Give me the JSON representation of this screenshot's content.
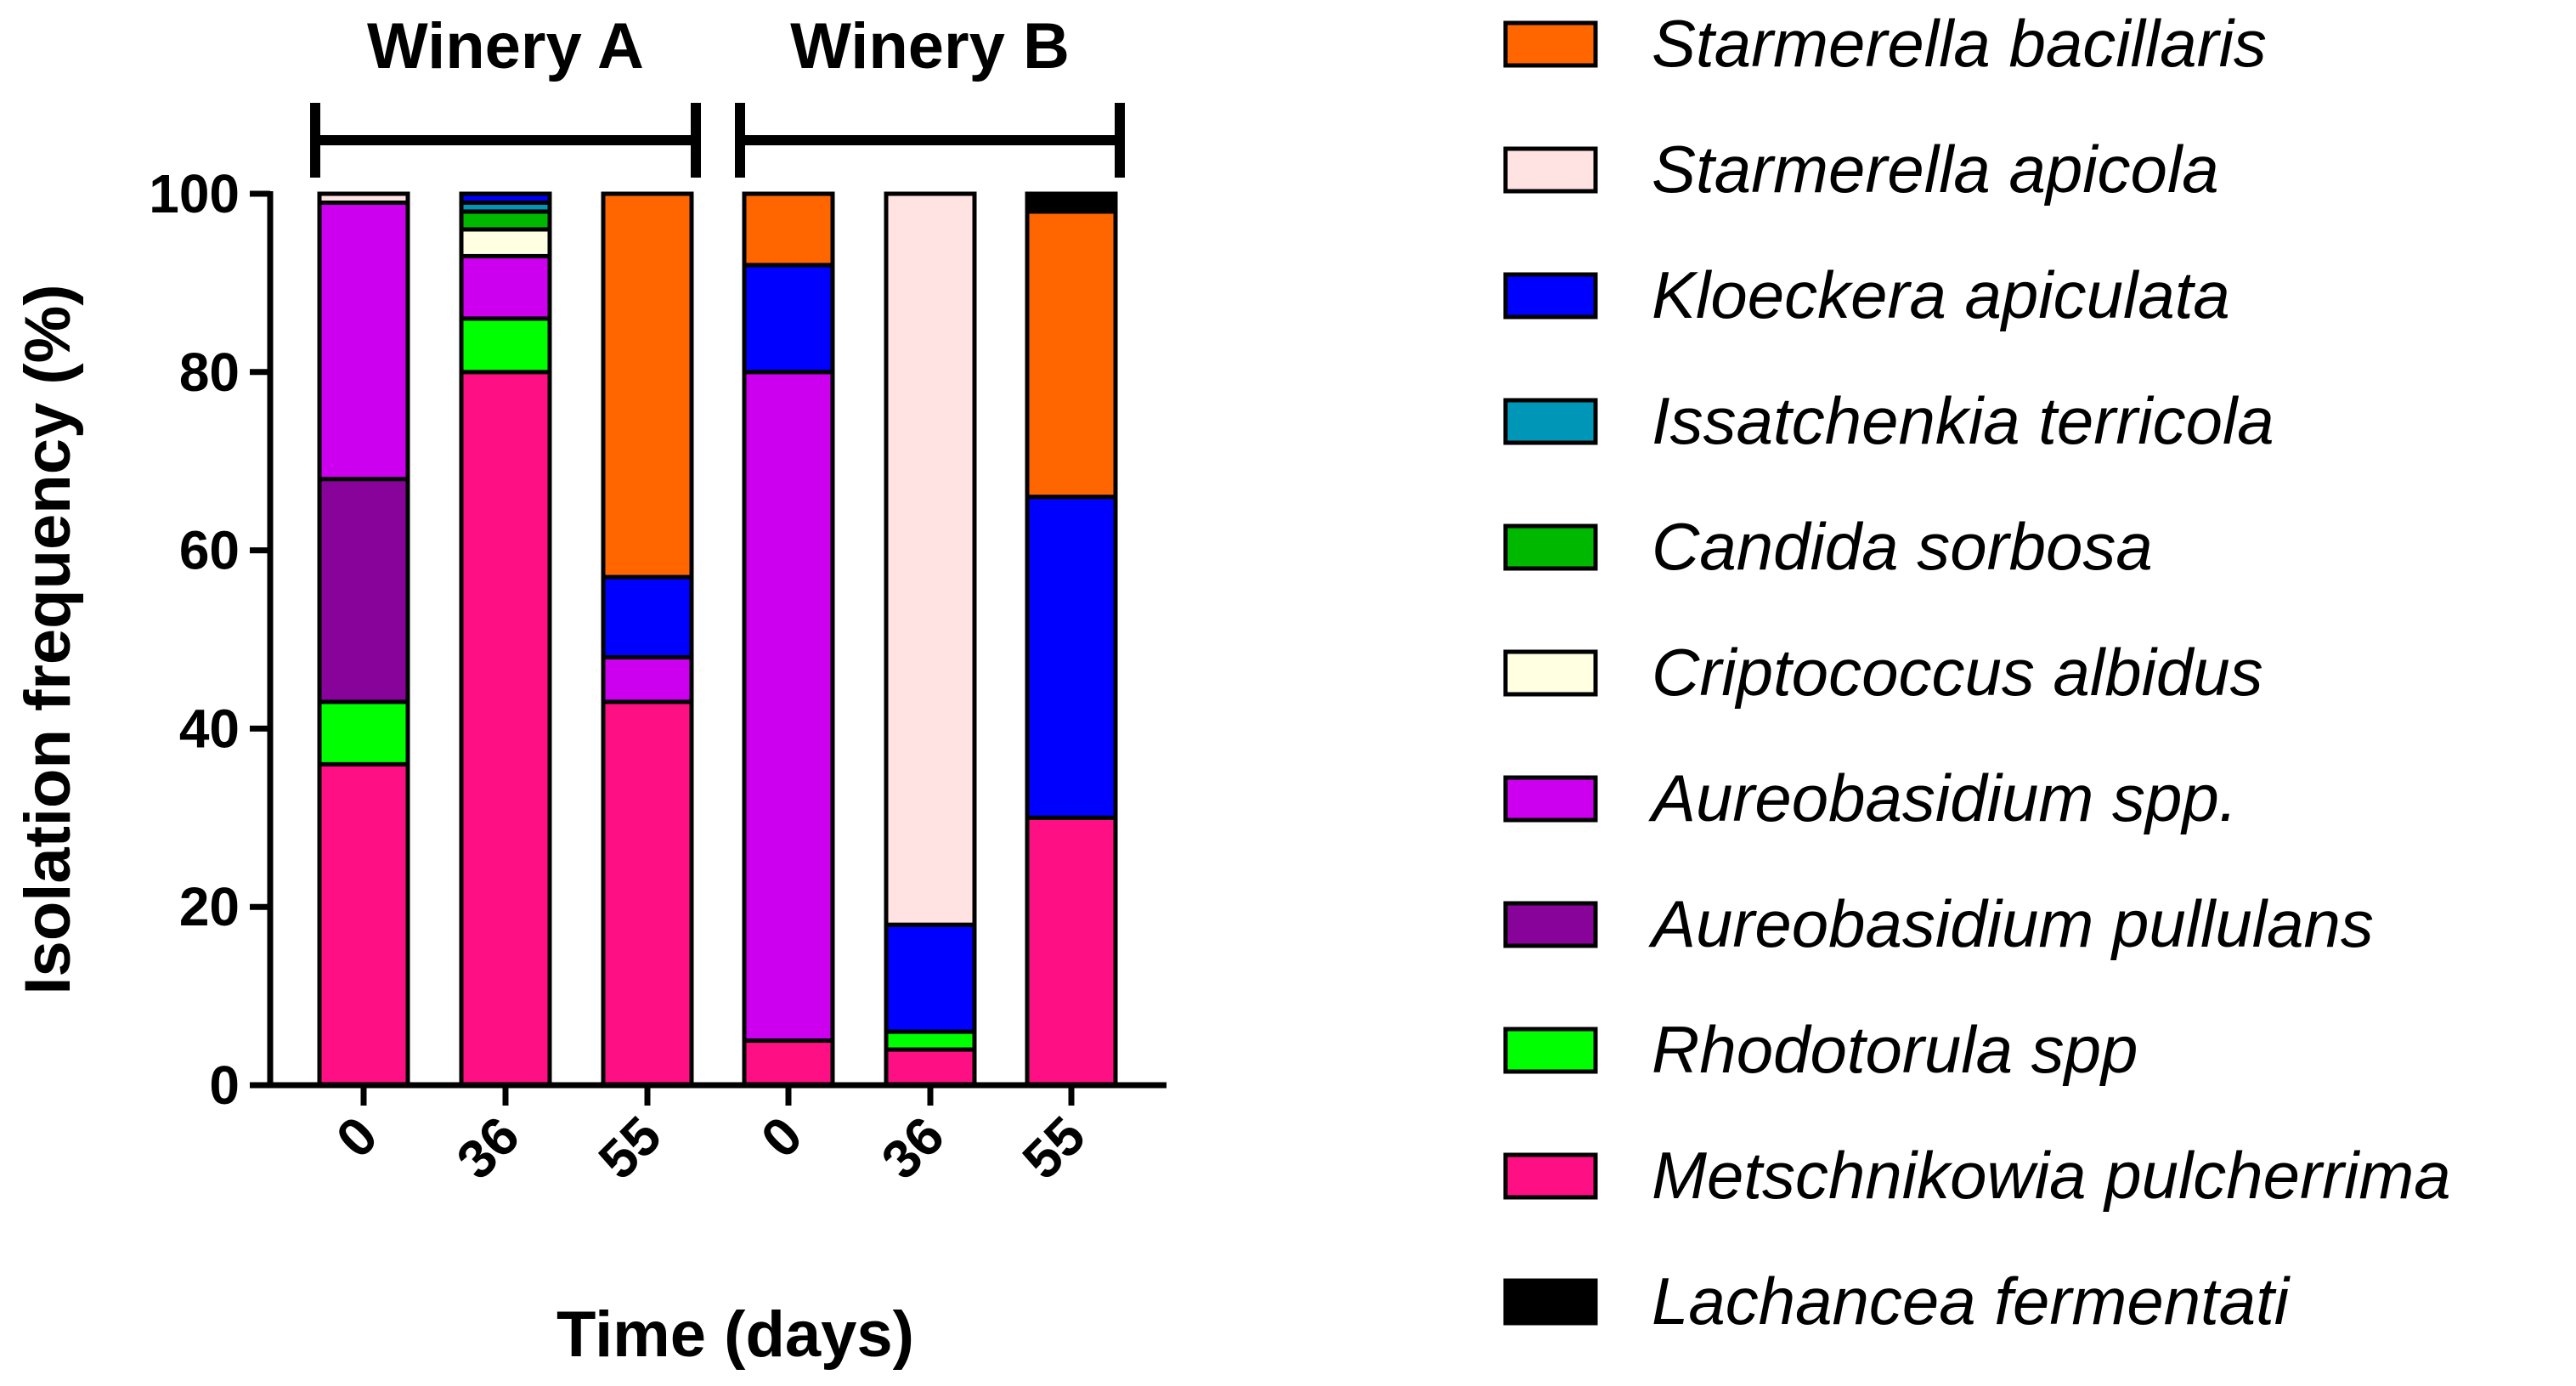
{
  "chart_data": {
    "type": "bar",
    "stacked": true,
    "ylabel": "Isolation frequency (%)",
    "xlabel": "Time (days)",
    "ylim": [
      0,
      100
    ],
    "yticks": [
      0,
      20,
      40,
      60,
      80,
      100
    ],
    "groups": [
      {
        "name": "Winery A",
        "bars": [
          0,
          1,
          2
        ]
      },
      {
        "name": "Winery B",
        "bars": [
          3,
          4,
          5
        ]
      }
    ],
    "categories": [
      "0",
      "36",
      "55",
      "0",
      "36",
      "55"
    ],
    "series": [
      {
        "name": "Metschnikowia pulcherrima",
        "color": "#FF0F84",
        "values": [
          36,
          80,
          43,
          5,
          4,
          30
        ]
      },
      {
        "name": "Rhodotorula spp",
        "color": "#00FF00",
        "values": [
          7,
          6,
          0,
          0,
          2,
          0
        ]
      },
      {
        "name": "Aureobasidium pullulans",
        "color": "#880399",
        "values": [
          25,
          0,
          0,
          0,
          0,
          0
        ]
      },
      {
        "name": "Aureobasidium spp.",
        "color": "#CC00EE",
        "values": [
          31,
          7,
          5,
          75,
          0,
          0
        ]
      },
      {
        "name": "Criptococcus albidus",
        "color": "#FFFFE2",
        "values": [
          0,
          3,
          0,
          0,
          0,
          0
        ]
      },
      {
        "name": "Candida sorbosa",
        "color": "#00B800",
        "values": [
          0,
          2,
          0,
          0,
          0,
          0
        ]
      },
      {
        "name": "Issatchenkia terricola",
        "color": "#0096B8",
        "values": [
          0,
          1,
          0,
          0,
          0,
          0
        ]
      },
      {
        "name": "Kloeckera apiculata",
        "color": "#0000FF",
        "values": [
          0,
          1,
          9,
          12,
          12,
          36
        ]
      },
      {
        "name": "Starmerella apicola",
        "color": "#FFE2E2",
        "values": [
          1,
          0,
          0,
          0,
          82,
          0
        ]
      },
      {
        "name": "Starmerella bacillaris",
        "color": "#FF6600",
        "values": [
          0,
          0,
          43,
          8,
          0,
          32
        ]
      },
      {
        "name": "Lachancea fermentati",
        "color": "#000000",
        "values": [
          0,
          0,
          0,
          0,
          0,
          2
        ]
      }
    ],
    "legend": [
      "Starmerella bacillaris",
      "Starmerella apicola",
      "Kloeckera apiculata",
      "Issatchenkia terricola",
      "Candida sorbosa",
      "Criptococcus albidus",
      "Aureobasidium spp.",
      "Aureobasidium pullulans",
      "Rhodotorula spp",
      "Metschnikowia pulcherrima",
      "Lachancea fermentati"
    ],
    "legend_position": "right"
  }
}
